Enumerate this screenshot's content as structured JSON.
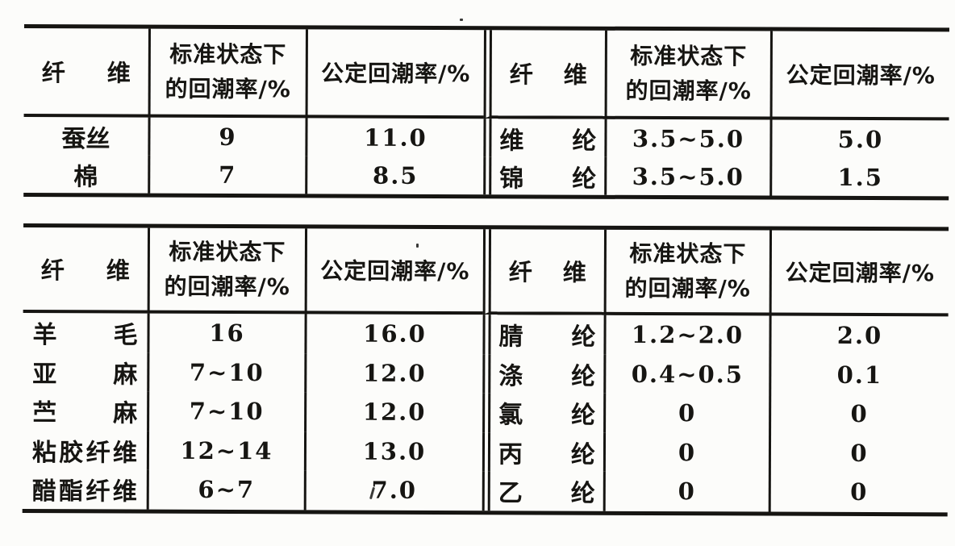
{
  "page_background": "#fcfcfa",
  "ink_color": "#161512",
  "header": {
    "fiber": "纤维",
    "standard": "标准状态下\n的回潮率/%",
    "official": "公定回潮率/%"
  },
  "table1": {
    "left_rows": [
      {
        "fiber": "蚕丝",
        "standard": "9",
        "official": "11.0"
      },
      {
        "fiber": "棉",
        "standard": "7",
        "official": "8.5"
      }
    ],
    "right_rows": [
      {
        "fiber": "维纶",
        "standard": "3.5~5.0",
        "official": "5.0"
      },
      {
        "fiber": "锦纶",
        "standard": "3.5~5.0",
        "official": "1.5"
      }
    ]
  },
  "table2": {
    "left_rows": [
      {
        "fiber": "羊毛",
        "standard": "16",
        "official": "16.0"
      },
      {
        "fiber": "亚麻",
        "standard": "7~10",
        "official": "12.0"
      },
      {
        "fiber": "苎麻",
        "standard": "7~10",
        "official": "12.0"
      },
      {
        "fiber": "粘胶纤维",
        "standard": "12~14",
        "official": "13.0"
      },
      {
        "fiber": "醋酯纤维",
        "standard": "6~7",
        "official": "7.0"
      }
    ],
    "right_rows": [
      {
        "fiber": "腈纶",
        "standard": "1.2~2.0",
        "official": "2.0"
      },
      {
        "fiber": "涤纶",
        "standard": "0.4~0.5",
        "official": "0.1"
      },
      {
        "fiber": "氯纶",
        "standard": "0",
        "official": "0"
      },
      {
        "fiber": "丙纶",
        "standard": "0",
        "official": "0"
      },
      {
        "fiber": "乙纶",
        "standard": "0",
        "official": "0"
      }
    ]
  }
}
